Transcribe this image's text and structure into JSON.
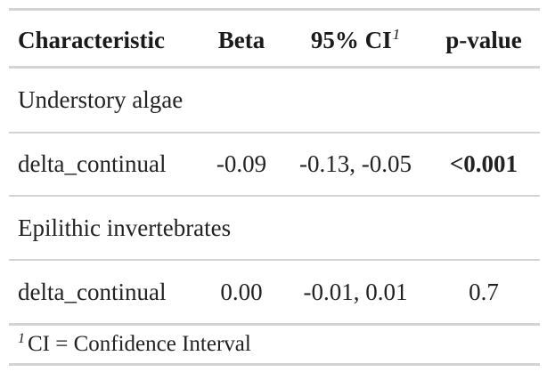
{
  "table": {
    "headers": {
      "characteristic": "Characteristic",
      "beta": "Beta",
      "ci": "95% CI",
      "ci_footnote_mark": "1",
      "pvalue": "p-value"
    },
    "groups": [
      {
        "label": "Understory algae",
        "row": {
          "characteristic": "delta_continual",
          "beta": "-0.09",
          "ci": "-0.13, -0.05",
          "pvalue": "<0.001",
          "pvalue_bold": true
        }
      },
      {
        "label": "Epilithic invertebrates",
        "row": {
          "characteristic": "delta_continual",
          "beta": "0.00",
          "ci": "-0.01, 0.01",
          "pvalue": "0.7",
          "pvalue_bold": false
        }
      }
    ],
    "footnote": {
      "mark": "1",
      "text": "CI = Confidence Interval"
    }
  }
}
